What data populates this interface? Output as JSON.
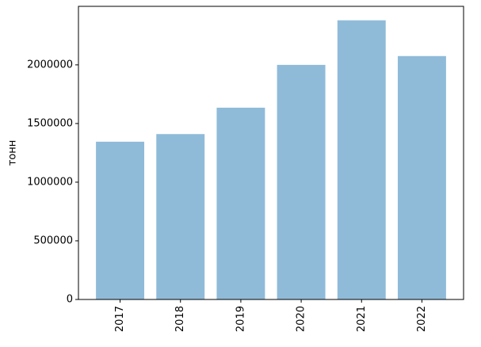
{
  "chart_data": {
    "type": "bar",
    "y_label": "тонн",
    "categories": [
      "2017",
      "2018",
      "2019",
      "2020",
      "2021",
      "2022"
    ],
    "values": [
      1345000,
      1410000,
      1635000,
      2000000,
      2380000,
      2075000
    ],
    "color": "#8fbbd9",
    "ylim": [
      0,
      2499000
    ],
    "yticks": [
      0,
      500000,
      1000000,
      1500000,
      2000000
    ],
    "grid": false
  }
}
